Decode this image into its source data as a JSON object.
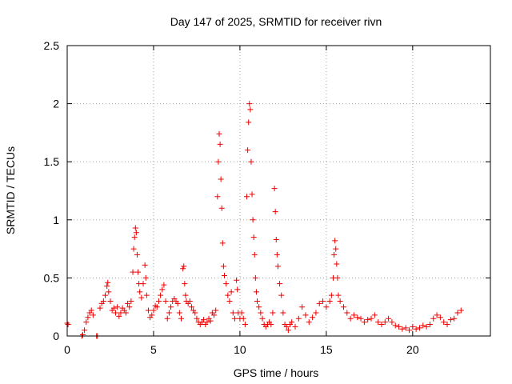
{
  "chart_data": {
    "type": "scatter",
    "title": "Day 147 of 2025, SRMTID for receiver rivn",
    "xlabel": "GPS time / hours",
    "ylabel": "SRMTID / TECUs",
    "xlim": [
      0,
      24.5
    ],
    "ylim": [
      0,
      2.5
    ],
    "grid": true,
    "x_ticks": [
      0,
      5,
      10,
      15,
      20
    ],
    "y_ticks": [
      0,
      0.5,
      1,
      1.5,
      2,
      2.5
    ],
    "x_tick_labels": [
      "0",
      "5",
      "10",
      "15",
      "20"
    ],
    "y_tick_labels": [
      "0",
      "0.5",
      "1",
      "1.5",
      "2",
      "2.5"
    ],
    "marker": "plus",
    "color": "#ee0000",
    "series": [
      {
        "name": "SRMTID",
        "points": [
          [
            0.0,
            0.11
          ],
          [
            0.05,
            0.1
          ],
          [
            0.85,
            0.0
          ],
          [
            0.9,
            0.01
          ],
          [
            1.0,
            0.05
          ],
          [
            1.1,
            0.12
          ],
          [
            1.2,
            0.16
          ],
          [
            1.3,
            0.2
          ],
          [
            1.4,
            0.22
          ],
          [
            1.5,
            0.18
          ],
          [
            1.7,
            0.0
          ],
          [
            1.75,
            0.0
          ],
          [
            1.9,
            0.24
          ],
          [
            2.0,
            0.28
          ],
          [
            2.1,
            0.3
          ],
          [
            2.2,
            0.35
          ],
          [
            2.3,
            0.43
          ],
          [
            2.35,
            0.46
          ],
          [
            2.4,
            0.38
          ],
          [
            2.5,
            0.3
          ],
          [
            2.6,
            0.22
          ],
          [
            2.7,
            0.24
          ],
          [
            2.8,
            0.2
          ],
          [
            2.9,
            0.25
          ],
          [
            3.0,
            0.17
          ],
          [
            3.1,
            0.2
          ],
          [
            3.2,
            0.24
          ],
          [
            3.3,
            0.22
          ],
          [
            3.4,
            0.2
          ],
          [
            3.5,
            0.28
          ],
          [
            3.6,
            0.25
          ],
          [
            3.7,
            0.3
          ],
          [
            3.8,
            0.55
          ],
          [
            3.85,
            0.75
          ],
          [
            3.9,
            0.85
          ],
          [
            3.95,
            0.93
          ],
          [
            4.0,
            0.89
          ],
          [
            4.05,
            0.7
          ],
          [
            4.1,
            0.55
          ],
          [
            4.15,
            0.45
          ],
          [
            4.2,
            0.38
          ],
          [
            4.3,
            0.33
          ],
          [
            4.4,
            0.45
          ],
          [
            4.5,
            0.61
          ],
          [
            4.55,
            0.5
          ],
          [
            4.6,
            0.35
          ],
          [
            4.7,
            0.22
          ],
          [
            4.8,
            0.16
          ],
          [
            4.9,
            0.18
          ],
          [
            5.0,
            0.22
          ],
          [
            5.1,
            0.26
          ],
          [
            5.2,
            0.25
          ],
          [
            5.3,
            0.3
          ],
          [
            5.4,
            0.35
          ],
          [
            5.5,
            0.4
          ],
          [
            5.6,
            0.44
          ],
          [
            5.7,
            0.3
          ],
          [
            5.8,
            0.15
          ],
          [
            5.9,
            0.2
          ],
          [
            6.0,
            0.25
          ],
          [
            6.1,
            0.3
          ],
          [
            6.2,
            0.32
          ],
          [
            6.3,
            0.3
          ],
          [
            6.4,
            0.28
          ],
          [
            6.5,
            0.2
          ],
          [
            6.6,
            0.15
          ],
          [
            6.7,
            0.58
          ],
          [
            6.75,
            0.6
          ],
          [
            6.8,
            0.45
          ],
          [
            6.85,
            0.35
          ],
          [
            6.9,
            0.3
          ],
          [
            7.0,
            0.28
          ],
          [
            7.1,
            0.3
          ],
          [
            7.2,
            0.25
          ],
          [
            7.3,
            0.22
          ],
          [
            7.4,
            0.2
          ],
          [
            7.5,
            0.15
          ],
          [
            7.6,
            0.12
          ],
          [
            7.7,
            0.1
          ],
          [
            7.8,
            0.12
          ],
          [
            7.9,
            0.14
          ],
          [
            8.0,
            0.1
          ],
          [
            8.1,
            0.12
          ],
          [
            8.2,
            0.15
          ],
          [
            8.3,
            0.13
          ],
          [
            8.4,
            0.2
          ],
          [
            8.5,
            0.18
          ],
          [
            8.6,
            0.22
          ],
          [
            8.7,
            1.2
          ],
          [
            8.75,
            1.5
          ],
          [
            8.8,
            1.74
          ],
          [
            8.85,
            1.65
          ],
          [
            8.9,
            1.35
          ],
          [
            8.95,
            1.1
          ],
          [
            9.0,
            0.8
          ],
          [
            9.05,
            0.6
          ],
          [
            9.1,
            0.52
          ],
          [
            9.2,
            0.45
          ],
          [
            9.3,
            0.35
          ],
          [
            9.4,
            0.3
          ],
          [
            9.5,
            0.38
          ],
          [
            9.6,
            0.2
          ],
          [
            9.7,
            0.15
          ],
          [
            9.8,
            0.48
          ],
          [
            9.85,
            0.4
          ],
          [
            9.9,
            0.2
          ],
          [
            10.0,
            0.15
          ],
          [
            10.1,
            0.2
          ],
          [
            10.2,
            0.15
          ],
          [
            10.3,
            0.1
          ],
          [
            10.4,
            1.2
          ],
          [
            10.45,
            1.6
          ],
          [
            10.5,
            1.84
          ],
          [
            10.55,
            2.0
          ],
          [
            10.6,
            1.95
          ],
          [
            10.65,
            1.5
          ],
          [
            10.7,
            1.22
          ],
          [
            10.75,
            1.0
          ],
          [
            10.8,
            0.85
          ],
          [
            10.85,
            0.7
          ],
          [
            10.9,
            0.5
          ],
          [
            10.95,
            0.38
          ],
          [
            11.0,
            0.3
          ],
          [
            11.1,
            0.25
          ],
          [
            11.2,
            0.2
          ],
          [
            11.3,
            0.15
          ],
          [
            11.4,
            0.1
          ],
          [
            11.5,
            0.08
          ],
          [
            11.6,
            0.1
          ],
          [
            11.7,
            0.12
          ],
          [
            11.8,
            0.1
          ],
          [
            11.9,
            0.2
          ],
          [
            12.0,
            1.27
          ],
          [
            12.05,
            1.07
          ],
          [
            12.1,
            0.83
          ],
          [
            12.15,
            0.7
          ],
          [
            12.2,
            0.6
          ],
          [
            12.3,
            0.45
          ],
          [
            12.4,
            0.35
          ],
          [
            12.5,
            0.2
          ],
          [
            12.6,
            0.1
          ],
          [
            12.7,
            0.08
          ],
          [
            12.8,
            0.05
          ],
          [
            12.9,
            0.1
          ],
          [
            13.0,
            0.12
          ],
          [
            13.2,
            0.08
          ],
          [
            13.4,
            0.15
          ],
          [
            13.6,
            0.25
          ],
          [
            13.8,
            0.18
          ],
          [
            14.0,
            0.12
          ],
          [
            14.2,
            0.16
          ],
          [
            14.4,
            0.2
          ],
          [
            14.6,
            0.28
          ],
          [
            14.8,
            0.3
          ],
          [
            15.0,
            0.25
          ],
          [
            15.2,
            0.3
          ],
          [
            15.3,
            0.35
          ],
          [
            15.4,
            0.5
          ],
          [
            15.45,
            0.7
          ],
          [
            15.5,
            0.82
          ],
          [
            15.55,
            0.75
          ],
          [
            15.6,
            0.62
          ],
          [
            15.65,
            0.5
          ],
          [
            15.7,
            0.35
          ],
          [
            15.8,
            0.3
          ],
          [
            16.0,
            0.25
          ],
          [
            16.2,
            0.2
          ],
          [
            16.4,
            0.15
          ],
          [
            16.6,
            0.18
          ],
          [
            16.8,
            0.16
          ],
          [
            17.0,
            0.15
          ],
          [
            17.2,
            0.12
          ],
          [
            17.4,
            0.14
          ],
          [
            17.6,
            0.15
          ],
          [
            17.8,
            0.18
          ],
          [
            18.0,
            0.12
          ],
          [
            18.2,
            0.1
          ],
          [
            18.4,
            0.12
          ],
          [
            18.6,
            0.15
          ],
          [
            18.8,
            0.12
          ],
          [
            19.0,
            0.09
          ],
          [
            19.2,
            0.08
          ],
          [
            19.4,
            0.06
          ],
          [
            19.6,
            0.07
          ],
          [
            19.8,
            0.05
          ],
          [
            20.0,
            0.08
          ],
          [
            20.2,
            0.06
          ],
          [
            20.4,
            0.07
          ],
          [
            20.6,
            0.09
          ],
          [
            20.8,
            0.08
          ],
          [
            21.0,
            0.1
          ],
          [
            21.2,
            0.15
          ],
          [
            21.4,
            0.18
          ],
          [
            21.6,
            0.16
          ],
          [
            21.8,
            0.12
          ],
          [
            22.0,
            0.1
          ],
          [
            22.2,
            0.14
          ],
          [
            22.4,
            0.15
          ],
          [
            22.6,
            0.2
          ],
          [
            22.8,
            0.22
          ]
        ]
      }
    ]
  }
}
